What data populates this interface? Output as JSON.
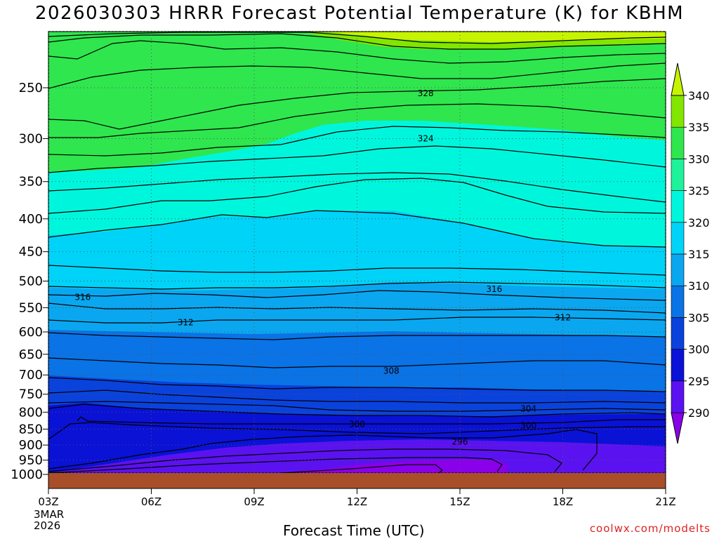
{
  "chart_data": {
    "type": "heatmap",
    "title": "2026030303 HRRR Forecast Potential Temperature (K) for KBHM",
    "xlabel": "Forecast Time (UTC)",
    "ylabel": "",
    "x_ticks": [
      "03Z",
      "06Z",
      "09Z",
      "12Z",
      "15Z",
      "18Z",
      "21Z"
    ],
    "x_date": [
      "3MAR",
      "2026"
    ],
    "y_ticks": [
      250,
      300,
      350,
      400,
      450,
      500,
      550,
      600,
      650,
      700,
      750,
      800,
      850,
      900,
      950,
      1000
    ],
    "y_axis_units": "hPa (pressure, decreasing upward)",
    "colorbar": {
      "levels": [
        290,
        295,
        300,
        305,
        310,
        315,
        320,
        325,
        330,
        335,
        340
      ],
      "colors": [
        "#8a00ea",
        "#5b12f0",
        "#0a12d6",
        "#0a42dc",
        "#0a73e6",
        "#0aa7f0",
        "#00d3f8",
        "#00f6dc",
        "#1ff29a",
        "#2fe64e",
        "#82e600",
        "#c6f400"
      ]
    },
    "contour_labels": [
      {
        "value": "328",
        "time": "14Z",
        "pressure": 255
      },
      {
        "value": "324",
        "time": "14Z",
        "pressure": 300
      },
      {
        "value": "316",
        "time": "04Z",
        "pressure": 530
      },
      {
        "value": "316",
        "time": "16Z",
        "pressure": 515
      },
      {
        "value": "312",
        "time": "07Z",
        "pressure": 580
      },
      {
        "value": "312",
        "time": "18Z",
        "pressure": 570
      },
      {
        "value": "308",
        "time": "13Z",
        "pressure": 690
      },
      {
        "value": "304",
        "time": "17Z",
        "pressure": 790
      },
      {
        "value": "300",
        "time": "12Z",
        "pressure": 835
      },
      {
        "value": "300",
        "time": "17Z",
        "pressure": 840
      },
      {
        "value": "296",
        "time": "15Z",
        "pressure": 890
      }
    ],
    "grid": true,
    "legend": "colorbar right"
  },
  "footer": {
    "credit": "coolwx.com/modelts"
  }
}
